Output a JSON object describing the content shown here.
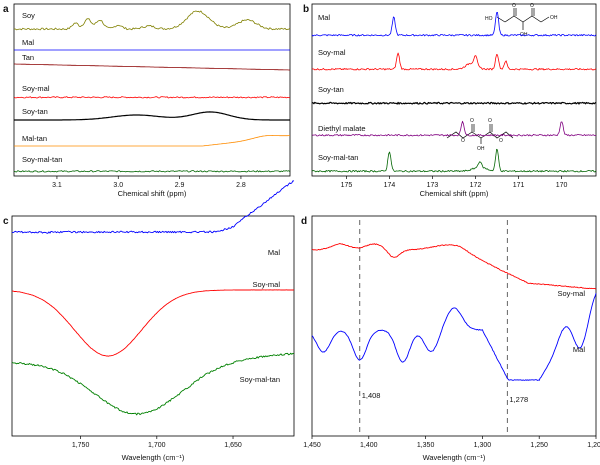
{
  "chart_data": [
    {
      "panel": "a",
      "type": "line",
      "xlabel": "Chemical shift (ppm)",
      "x_ticks": [
        "3.1",
        "3.0",
        "2.9",
        "2.8"
      ],
      "xlim": [
        3.17,
        2.72
      ],
      "series": [
        {
          "name": "Soy",
          "color": "#808000",
          "shape": "multiplet",
          "peaks": [
            3.05,
            3.03,
            2.87,
            2.79
          ]
        },
        {
          "name": "Mal",
          "color": "#0000ff",
          "shape": "flat"
        },
        {
          "name": "Tan",
          "color": "#8b0000",
          "shape": "sloped"
        },
        {
          "name": "Soy-mal",
          "color": "#ff0000",
          "shape": "noisy-flat"
        },
        {
          "name": "Soy-tan",
          "color": "#000000",
          "shape": "broad",
          "peaks": [
            2.97,
            2.85
          ]
        },
        {
          "name": "Mal-tan",
          "color": "#ff8c00",
          "shape": "rising"
        },
        {
          "name": "Soy-mal-tan",
          "color": "#006400",
          "shape": "noisy-flat"
        }
      ]
    },
    {
      "panel": "b",
      "type": "line",
      "xlabel": "Chemical shift (ppm)",
      "x_ticks": [
        "175",
        "174",
        "173",
        "172",
        "171",
        "170"
      ],
      "xlim": [
        175.8,
        169.2
      ],
      "series": [
        {
          "name": "Mal",
          "color": "#0000ff",
          "peaks": [
            173.9,
            171.5
          ]
        },
        {
          "name": "Soy-mal",
          "color": "#ff0000",
          "peaks": [
            173.8,
            172.0,
            171.5,
            171.3
          ]
        },
        {
          "name": "Soy-tan",
          "color": "#000000",
          "peaks": []
        },
        {
          "name": "Diethyl malate",
          "color": "#800080",
          "peaks": [
            172.3,
            170.0
          ]
        },
        {
          "name": "Soy-mal-tan",
          "color": "#006400",
          "peaks": [
            174.0,
            171.9,
            171.5
          ]
        }
      ]
    },
    {
      "panel": "c",
      "type": "line",
      "xlabel": "Wavelength (cm⁻¹)",
      "x_ticks": [
        "1,750",
        "1,700",
        "1,650"
      ],
      "xlim": [
        1795,
        1610
      ],
      "series": [
        {
          "name": "Mal",
          "color": "#0000ff",
          "minimum_x": 1680
        },
        {
          "name": "Soy-mal",
          "color": "#ff0000",
          "minimum_x": 1732
        },
        {
          "name": "Soy-mal-tan",
          "color": "#008000",
          "minimum_x": 1713
        }
      ]
    },
    {
      "panel": "d",
      "type": "line",
      "xlabel": "Wavelength (cm⁻¹)",
      "x_ticks": [
        "1,450",
        "1,400",
        "1,350",
        "1,300",
        "1,250",
        "1,200"
      ],
      "xlim": [
        1450,
        1200
      ],
      "annotations": [
        {
          "x": 1408,
          "label": "1,408"
        },
        {
          "x": 1278,
          "label": "1,278"
        }
      ],
      "series": [
        {
          "name": "Soy-mal",
          "color": "#ff0000"
        },
        {
          "name": "Mal",
          "color": "#0000ff"
        }
      ]
    }
  ]
}
